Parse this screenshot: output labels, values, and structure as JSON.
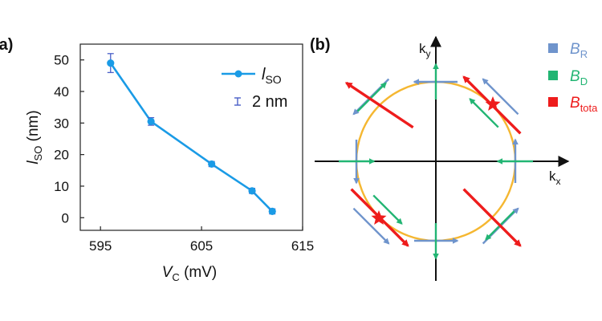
{
  "panel_a": {
    "label": "(a)",
    "chart_data": {
      "type": "line",
      "x": [
        596,
        600,
        606,
        610,
        612
      ],
      "series": [
        {
          "name": "l_SO",
          "values": [
            49,
            30.5,
            17,
            8.5,
            2
          ],
          "errors": [
            3,
            1.2,
            0.8,
            0.8,
            0.8
          ],
          "color": "#1a9be6"
        }
      ],
      "xlim": [
        593,
        615
      ],
      "ylim": [
        -4,
        55
      ],
      "x_ticks": [
        595,
        605,
        615
      ],
      "y_ticks": [
        0,
        10,
        20,
        30,
        40,
        50
      ],
      "xlabel": {
        "main": "V",
        "sub": "C",
        "unit": " (mV)"
      },
      "ylabel": {
        "main": "l",
        "sub": "SO",
        "unit": " (nm)"
      },
      "grid": false,
      "legend": {
        "placement": "top-right",
        "line_entry": {
          "main": "l",
          "sub": "SO"
        },
        "errorbar_entry": "2 nm"
      }
    }
  },
  "panel_b": {
    "label": "(b)",
    "axis_labels": {
      "ky": {
        "main": "k",
        "sub": "y"
      },
      "kx": {
        "main": "k",
        "sub": "x"
      }
    },
    "legend": [
      {
        "main": "B",
        "sub": "R",
        "color": "#6f94cc"
      },
      {
        "main": "B",
        "sub": "D",
        "color": "#22b573"
      },
      {
        "main": "B",
        "sub": "tota",
        "color": "#ee1c1c"
      }
    ],
    "circle_color": "#f5b731",
    "star_color": "#ee1c1c"
  }
}
